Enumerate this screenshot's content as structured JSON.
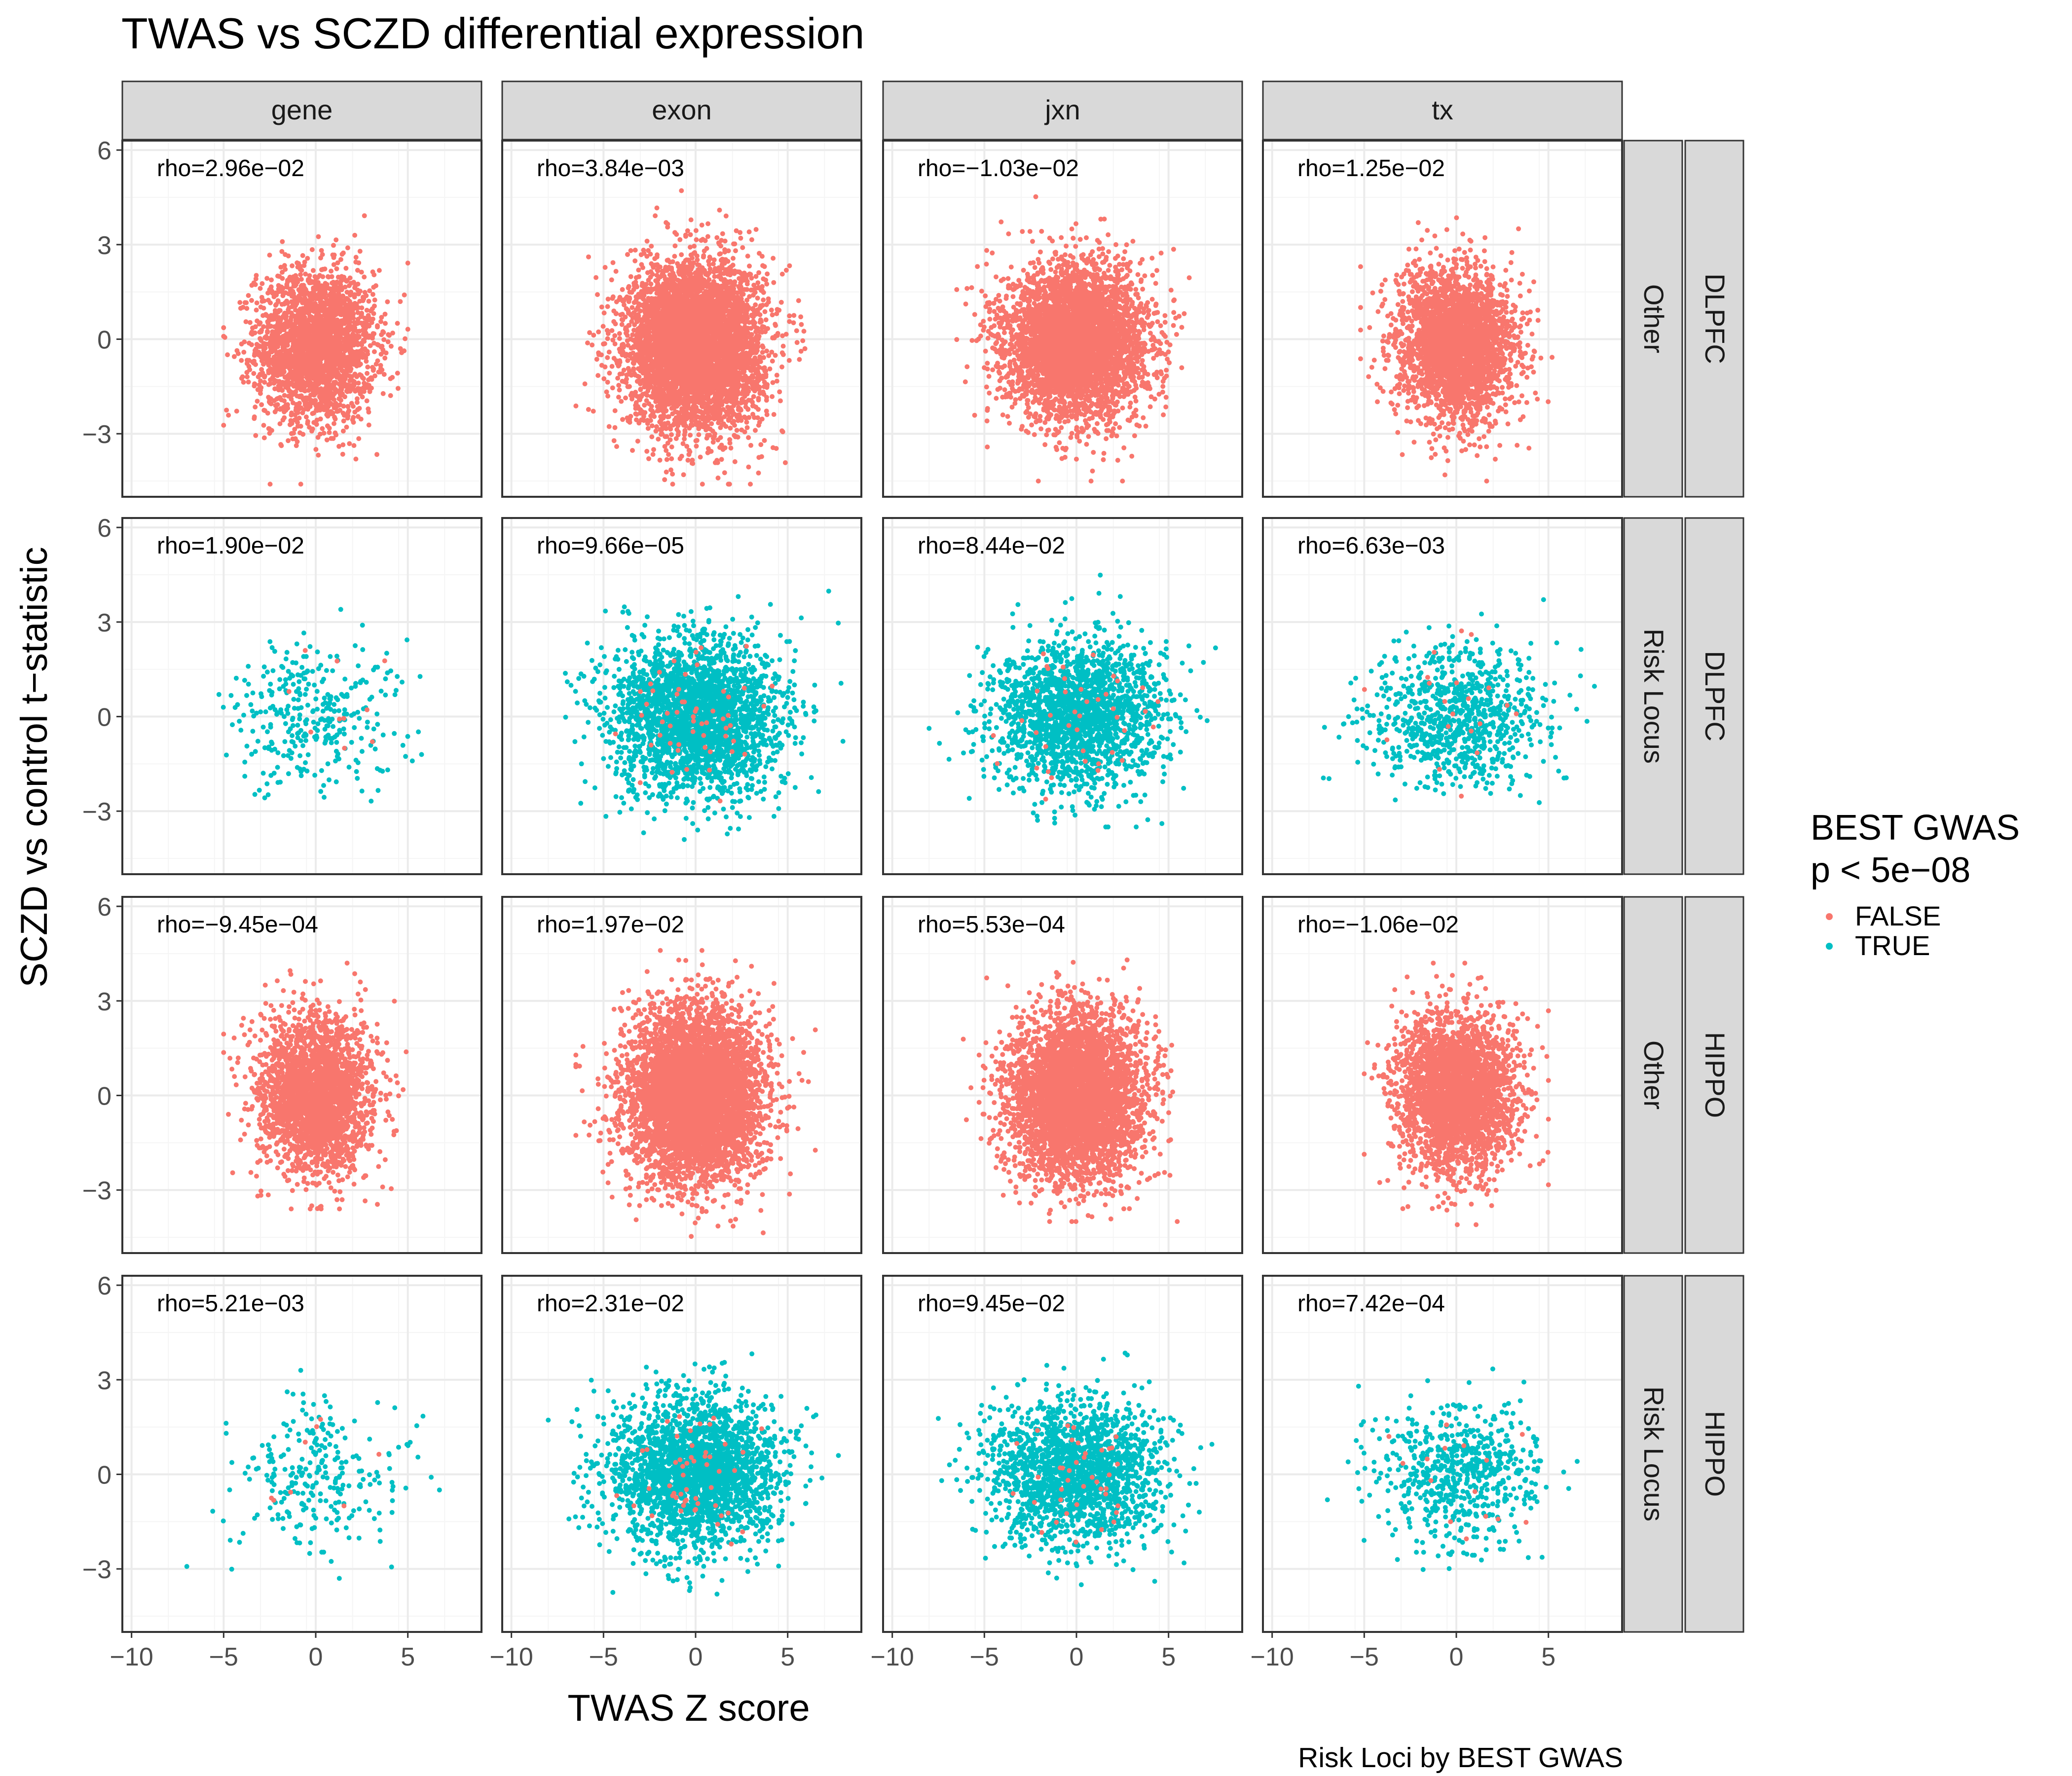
{
  "chart_data": {
    "type": "scatter",
    "title": "TWAS vs SCZD differential expression",
    "xlabel": "TWAS Z score",
    "ylabel": "SCZD vs control t−statistic",
    "caption": "Risk Loci by BEST GWAS",
    "xlim": [
      -10.5,
      9
    ],
    "ylim": [
      -5,
      6.3
    ],
    "x_ticks": [
      -10,
      -5,
      0,
      5
    ],
    "x_tick_labels": [
      "−10",
      "−5",
      "0",
      "5"
    ],
    "y_ticks": [
      -3,
      0,
      3,
      6
    ],
    "y_tick_labels": [
      "−3",
      "0",
      "3",
      "6"
    ],
    "grid": true,
    "columns": [
      "gene",
      "exon",
      "jxn",
      "tx"
    ],
    "rows": [
      {
        "group": "Other",
        "region": "DLPFC"
      },
      {
        "group": "Risk Locus",
        "region": "DLPFC"
      },
      {
        "group": "Other",
        "region": "HIPPO"
      },
      {
        "group": "Risk Locus",
        "region": "HIPPO"
      }
    ],
    "legend": {
      "title_lines": [
        "BEST GWAS",
        "p < 5e−08"
      ],
      "position": "right",
      "entries": [
        {
          "label": "FALSE",
          "color": "#F8766D"
        },
        {
          "label": "TRUE",
          "color": "#00BFC4"
        }
      ]
    },
    "panels": [
      {
        "rho": "rho=2.96e−02",
        "series": "FALSE",
        "n": 2600,
        "cx": 0,
        "cy": -0.2,
        "sx": 1.6,
        "sy": 1.2,
        "xr": [
          -5,
          5
        ],
        "yr": [
          -4.6,
          5.0
        ]
      },
      {
        "rho": "rho=3.84e−03",
        "series": "FALSE",
        "n": 5200,
        "cx": 0,
        "cy": -0.2,
        "sx": 1.8,
        "sy": 1.3,
        "xr": [
          -7,
          6.5
        ],
        "yr": [
          -4.6,
          5.8
        ]
      },
      {
        "rho": "rho=−1.03e−02",
        "series": "FALSE",
        "n": 4200,
        "cx": 0,
        "cy": -0.1,
        "sx": 1.9,
        "sy": 1.2,
        "xr": [
          -6.5,
          6.5
        ],
        "yr": [
          -4.5,
          5.3
        ]
      },
      {
        "rho": "rho=1.25e−02",
        "series": "FALSE",
        "n": 2800,
        "cx": 0,
        "cy": -0.2,
        "sx": 1.6,
        "sy": 1.2,
        "xr": [
          -5.2,
          5.2
        ],
        "yr": [
          -4.5,
          4.6
        ]
      },
      {
        "rho": "rho=1.90e−02",
        "series": "TRUE",
        "n": 330,
        "cx": 0,
        "cy": 0,
        "sx": 2.4,
        "sy": 1.2,
        "xr": [
          -6.8,
          7.5
        ],
        "yr": [
          -4.2,
          3.4
        ]
      },
      {
        "rho": "rho=9.66e−05",
        "series": "TRUE",
        "n": 2600,
        "cx": 0,
        "cy": 0,
        "sx": 2.3,
        "sy": 1.25,
        "xr": [
          -8.5,
          8
        ],
        "yr": [
          -4.5,
          5.1
        ]
      },
      {
        "rho": "rho=8.44e−02",
        "series": "TRUE",
        "n": 1900,
        "cx": 0,
        "cy": 0,
        "sx": 2.3,
        "sy": 1.2,
        "xr": [
          -8,
          8
        ],
        "yr": [
          -3.5,
          4.6
        ]
      },
      {
        "rho": "rho=6.63e−03",
        "series": "TRUE",
        "n": 850,
        "cx": 0,
        "cy": 0,
        "sx": 2.4,
        "sy": 1.1,
        "xr": [
          -7.5,
          7.5
        ],
        "yr": [
          -3.0,
          4.8
        ]
      },
      {
        "rho": "rho=−9.45e−04",
        "series": "FALSE",
        "n": 2600,
        "cx": 0,
        "cy": 0,
        "sx": 1.5,
        "sy": 1.2,
        "xr": [
          -5,
          5
        ],
        "yr": [
          -3.6,
          4.2
        ]
      },
      {
        "rho": "rho=1.97e−02",
        "series": "FALSE",
        "n": 5200,
        "cx": 0,
        "cy": 0,
        "sx": 1.8,
        "sy": 1.35,
        "xr": [
          -6.5,
          6.5
        ],
        "yr": [
          -4.5,
          4.6
        ]
      },
      {
        "rho": "rho=5.53e−04",
        "series": "FALSE",
        "n": 4200,
        "cx": 0,
        "cy": 0,
        "sx": 1.8,
        "sy": 1.3,
        "xr": [
          -7.5,
          6.5
        ],
        "yr": [
          -4.0,
          4.3
        ]
      },
      {
        "rho": "rho=−1.06e−02",
        "series": "FALSE",
        "n": 2800,
        "cx": 0,
        "cy": 0,
        "sx": 1.6,
        "sy": 1.25,
        "xr": [
          -5,
          5
        ],
        "yr": [
          -4.1,
          4.2
        ]
      },
      {
        "rho": "rho=5.21e−03",
        "series": "TRUE",
        "n": 260,
        "cx": 0,
        "cy": 0,
        "sx": 2.4,
        "sy": 1.2,
        "xr": [
          -7,
          7.5
        ],
        "yr": [
          -3.3,
          3.3
        ]
      },
      {
        "rho": "rho=2.31e−02",
        "series": "TRUE",
        "n": 2400,
        "cx": 0,
        "cy": 0,
        "sx": 2.3,
        "sy": 1.2,
        "xr": [
          -8,
          8
        ],
        "yr": [
          -3.8,
          4.5
        ]
      },
      {
        "rho": "rho=9.45e−02",
        "series": "TRUE",
        "n": 1800,
        "cx": 0,
        "cy": 0,
        "sx": 2.3,
        "sy": 1.15,
        "xr": [
          -7.5,
          8
        ],
        "yr": [
          -3.5,
          4.2
        ]
      },
      {
        "rho": "rho=7.42e−04",
        "series": "TRUE",
        "n": 620,
        "cx": 0,
        "cy": 0,
        "sx": 2.3,
        "sy": 1.1,
        "xr": [
          -7,
          7
        ],
        "yr": [
          -3.5,
          4.5
        ]
      }
    ],
    "colors": {
      "FALSE": "#F8766D",
      "TRUE": "#00BFC4",
      "strip_fill": "#D9D9D9",
      "grid_major": "#EBEBEB",
      "grid_minor": "#F5F5F5",
      "panel_border": "#333333"
    }
  }
}
